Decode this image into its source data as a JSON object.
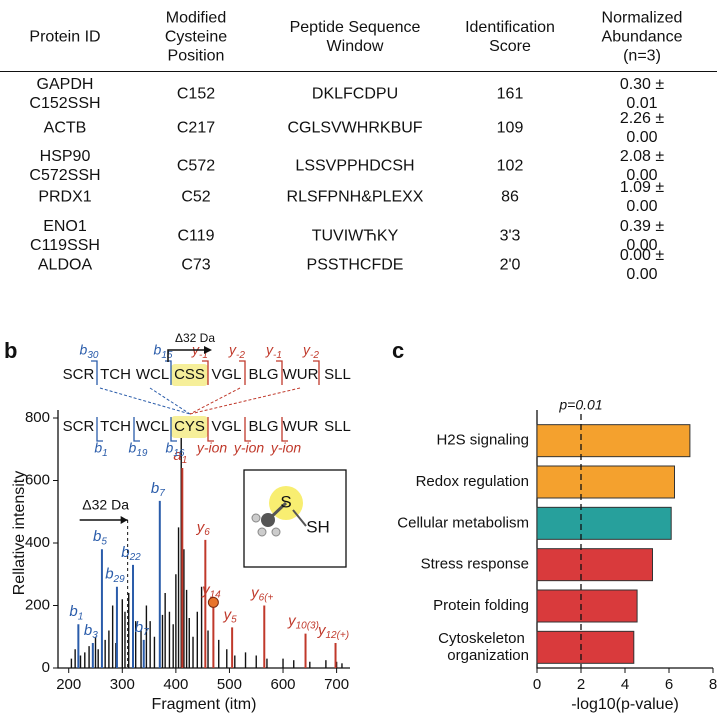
{
  "table": {
    "headers": [
      "Protein ID",
      "Modified\nCysteine\nPosition",
      "Peptide Sequence\nWindow",
      "Identification\nScore",
      "Normalized\nAbundance\n(n=3)"
    ],
    "rows": [
      [
        "GAPDH\nC152SSH",
        "C152",
        "DKLFCDPU",
        "161",
        "0.30 ± 0.01"
      ],
      [
        "ACTB",
        "C217",
        "CGLSVWHRKBUF",
        "109",
        "2.26 ± 0.00"
      ],
      [
        "HSP90\nC572SSH",
        "C572",
        "LSSVPPHDCSH",
        "102",
        "2.08 ± 0.00"
      ],
      [
        "PRDX1",
        "C52",
        "RLSFPNH&PLEXX",
        "86",
        "1.09 ± 0.00"
      ],
      [
        "ENO1\nC119SSH",
        "C119",
        "TUVIWЋKY",
        "3'3",
        "0.39 ± 0.00"
      ],
      [
        "ALDOA",
        "C73",
        "PSSTHCFDE",
        "2'0",
        "0.00 ± 0.00"
      ]
    ]
  },
  "panel_labels": [
    "b",
    "c"
  ],
  "chart_data": [
    {
      "type": "spectrum",
      "xlabel": "Fragment (itm)",
      "ylabel": "Rellative intensity",
      "xlim": [
        180,
        725
      ],
      "xticks": [
        200,
        300,
        400,
        500,
        600,
        700
      ],
      "ylim": [
        0,
        800
      ],
      "yticks": [
        0,
        200,
        400,
        600,
        800
      ],
      "series": [
        {
          "color": "#111111",
          "x": [
            205,
            212,
            222,
            230,
            238,
            250,
            255,
            268,
            275,
            282,
            288,
            300,
            305,
            312,
            325,
            335,
            345,
            352,
            360,
            375,
            380,
            388,
            395,
            400,
            405,
            410,
            415,
            420,
            425,
            432,
            440,
            448,
            460,
            470,
            480,
            495,
            510,
            530,
            550,
            570,
            600,
            620,
            650,
            680,
            700,
            710
          ],
          "values": [
            30,
            60,
            40,
            50,
            70,
            100,
            60,
            90,
            120,
            200,
            80,
            220,
            180,
            240,
            150,
            120,
            200,
            150,
            100,
            170,
            240,
            180,
            140,
            300,
            450,
            800,
            380,
            250,
            160,
            100,
            180,
            260,
            120,
            70,
            90,
            60,
            40,
            50,
            40,
            30,
            30,
            25,
            20,
            25,
            20,
            15
          ]
        },
        {
          "color": "#2a5caa",
          "x": [
            218,
            245,
            262,
            290,
            320,
            340,
            370
          ],
          "values": [
            140,
            80,
            380,
            260,
            330,
            90,
            535
          ],
          "ion_labels": [
            "b1",
            "b3",
            "b5",
            "b29",
            "b22",
            "b7",
            "b7"
          ]
        },
        {
          "color": "#c0392b",
          "x": [
            412,
            455,
            470,
            505,
            565,
            642,
            698
          ],
          "values": [
            640,
            410,
            210,
            130,
            200,
            110,
            80
          ],
          "ion_labels": [
            "a1",
            "y6",
            "y14",
            "y5",
            "y6(+",
            "y10(3)",
            "y12(+)"
          ],
          "circled": 2
        }
      ],
      "shift_annotation": "Δ32 Da",
      "peptide": {
        "shift_label": "Δ32 Da",
        "top": [
          "SCR",
          "TCH",
          "WCL",
          "CSS",
          "VGL",
          "BLG",
          "WUR",
          "SLL"
        ],
        "bottom": [
          "SCR",
          "TCH",
          "WCL",
          "CYS",
          "VGL",
          "BLG",
          "WUR",
          "SLL"
        ],
        "highlight": 3,
        "top_labels": [
          "b30",
          null,
          "b15",
          "y-1",
          "y-2",
          "y-1",
          "y-2"
        ],
        "bottom_labels": [
          "b1",
          "b19",
          "b16",
          "y-ion",
          "y-ion",
          "y-ion",
          null
        ]
      },
      "inset": {
        "atom": "S",
        "group": "SH"
      }
    },
    {
      "type": "hbar",
      "categories": [
        "H2S signaling",
        "Redox regulation",
        "Cellular metabolism",
        "Stress response",
        "Protein folding",
        "Cytoskeleton\norganization"
      ],
      "values": [
        6.95,
        6.25,
        6.1,
        5.25,
        4.55,
        4.4
      ],
      "colors": [
        "#f4a12e",
        "#f4a12e",
        "#27a09c",
        "#d93a3c",
        "#d93a3c",
        "#d93a3c"
      ],
      "xlim": [
        0,
        8
      ],
      "xticks": [
        0,
        2,
        4,
        6,
        8
      ],
      "xlabel": "-log10(p-value)",
      "threshold": {
        "value": 2,
        "label": "p=0.01"
      }
    }
  ]
}
